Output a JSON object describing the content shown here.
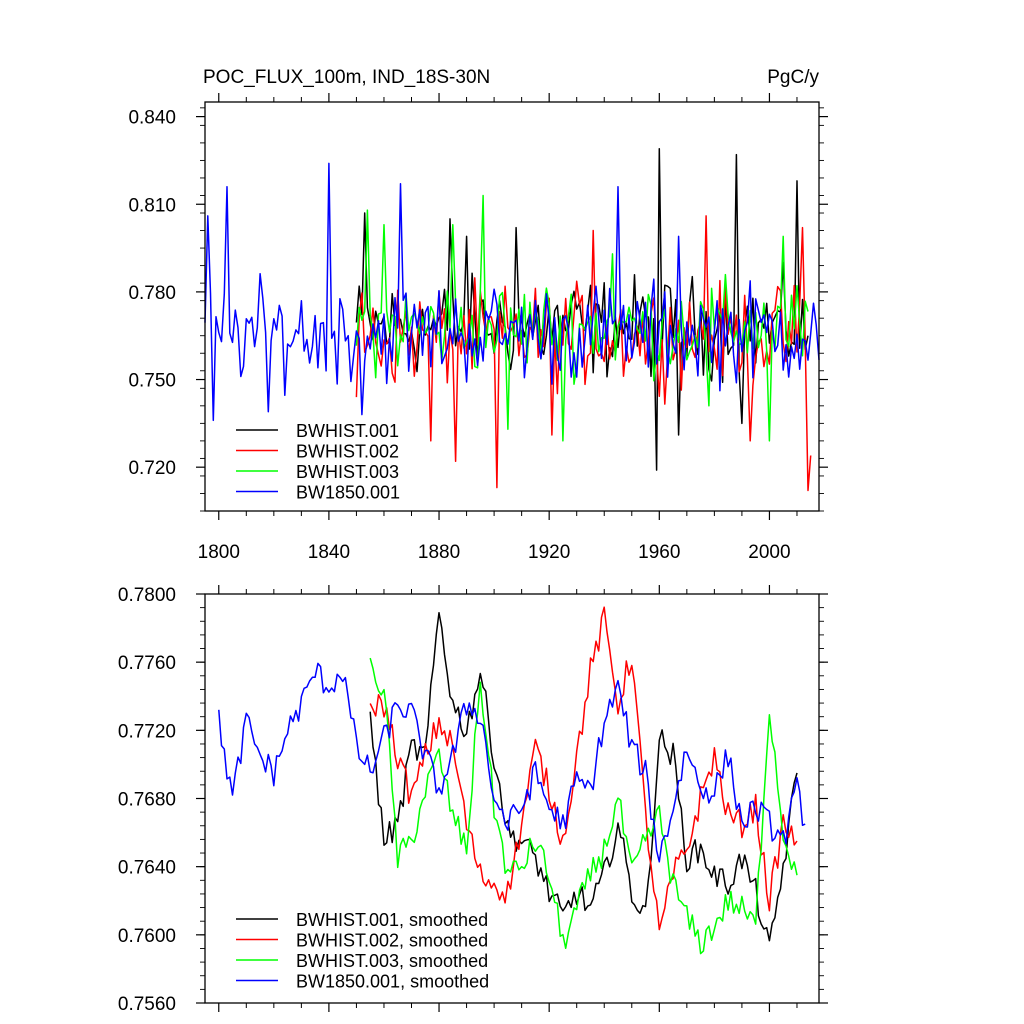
{
  "chart_data": [
    {
      "type": "line",
      "title_left": "POC_FLUX_100m, IND_18S-30N",
      "title_right": "PgC/y",
      "xlim": [
        1795,
        2018
      ],
      "ylim": [
        0.705,
        0.845
      ],
      "x_ticks": [
        1800,
        1840,
        1880,
        1920,
        1960,
        2000
      ],
      "y_ticks": [
        "0.720",
        "0.750",
        "0.780",
        "0.810",
        "0.840"
      ],
      "y_tick_values": [
        0.72,
        0.75,
        0.78,
        0.81,
        0.84
      ],
      "legend": [
        "BWHIST.001",
        "BWHIST.002",
        "BWHIST.003",
        "BW1850.001"
      ],
      "series": [
        {
          "name": "BWHIST.001",
          "color": "#000000",
          "start": 1850,
          "end": 2014,
          "base": 0.768,
          "amp": 0.013,
          "spikes": [
            [
              1853,
              0.807
            ],
            [
              1884,
              0.805
            ],
            [
              1890,
              0.799
            ],
            [
              1908,
              0.802
            ],
            [
              1960,
              0.829
            ],
            [
              1959,
              0.719
            ],
            [
              1988,
              0.827
            ],
            [
              2010,
              0.818
            ],
            [
              1967,
              0.731
            ],
            [
              1990,
              0.735
            ]
          ]
        },
        {
          "name": "BWHIST.002",
          "color": "#ff0000",
          "start": 1850,
          "end": 2015,
          "base": 0.765,
          "amp": 0.013,
          "spikes": [
            [
              1850,
              0.744
            ],
            [
              1877,
              0.729
            ],
            [
              1886,
              0.722
            ],
            [
              1901,
              0.713
            ],
            [
              1921,
              0.731
            ],
            [
              1936,
              0.801
            ],
            [
              1977,
              0.806
            ],
            [
              1993,
              0.729
            ],
            [
              2012,
              0.802
            ],
            [
              2014,
              0.712
            ],
            [
              2015,
              0.724
            ]
          ]
        },
        {
          "name": "BWHIST.003",
          "color": "#00ff00",
          "start": 1850,
          "end": 2014,
          "base": 0.768,
          "amp": 0.012,
          "spikes": [
            [
              1854,
              0.808
            ],
            [
              1860,
              0.803
            ],
            [
              1885,
              0.803
            ],
            [
              1896,
              0.813
            ],
            [
              1905,
              0.733
            ],
            [
              1925,
              0.729
            ],
            [
              1943,
              0.793
            ],
            [
              1978,
              0.741
            ],
            [
              2000,
              0.729
            ],
            [
              2005,
              0.799
            ]
          ]
        },
        {
          "name": "BW1850.001",
          "color": "#0000ff",
          "start": 1795,
          "end": 2018,
          "base": 0.766,
          "amp": 0.013,
          "spikes": [
            [
              1796,
              0.806
            ],
            [
              1798,
              0.736
            ],
            [
              1803,
              0.816
            ],
            [
              1818,
              0.739
            ],
            [
              1836,
              0.754
            ],
            [
              1840,
              0.824
            ],
            [
              1852,
              0.738
            ],
            [
              1866,
              0.817
            ],
            [
              1945,
              0.816
            ],
            [
              1967,
              0.799
            ]
          ]
        }
      ]
    },
    {
      "type": "line",
      "xlim": [
        1795,
        2018
      ],
      "ylim": [
        0.756,
        0.78
      ],
      "x_ticks": [
        1800,
        1840,
        1880,
        1920,
        1960,
        2000
      ],
      "y_ticks": [
        "0.7560",
        "0.7600",
        "0.7640",
        "0.7680",
        "0.7720",
        "0.7760",
        "0.7800"
      ],
      "y_tick_values": [
        0.756,
        0.76,
        0.764,
        0.768,
        0.772,
        0.776,
        0.78
      ],
      "legend": [
        "BWHIST.001, smoothed",
        "BWHIST.002, smoothed",
        "BWHIST.003, smoothed",
        "BW1850.001, smoothed"
      ],
      "series": [
        {
          "name": "BWHIST.001, smoothed",
          "color": "#000000",
          "x": [
            1855,
            1860,
            1865,
            1870,
            1875,
            1880,
            1885,
            1890,
            1895,
            1900,
            1905,
            1910,
            1915,
            1920,
            1925,
            1930,
            1935,
            1940,
            1945,
            1950,
            1955,
            1960,
            1965,
            1970,
            1975,
            1980,
            1985,
            1990,
            1995,
            2000,
            2005,
            2010
          ],
          "y": [
            0.7725,
            0.7655,
            0.7665,
            0.771,
            0.7705,
            0.779,
            0.7735,
            0.772,
            0.7755,
            0.7705,
            0.766,
            0.7655,
            0.7645,
            0.7625,
            0.761,
            0.7625,
            0.7615,
            0.7635,
            0.7665,
            0.7625,
            0.761,
            0.7715,
            0.7705,
            0.7645,
            0.765,
            0.7635,
            0.763,
            0.7645,
            0.7625,
            0.759,
            0.764,
            0.7695
          ]
        },
        {
          "name": "BWHIST.002, smoothed",
          "color": "#ff0000",
          "x": [
            1855,
            1860,
            1865,
            1870,
            1875,
            1880,
            1885,
            1890,
            1895,
            1900,
            1905,
            1910,
            1915,
            1920,
            1925,
            1930,
            1935,
            1940,
            1945,
            1950,
            1955,
            1960,
            1965,
            1970,
            1975,
            1980,
            1985,
            1990,
            1995,
            2000,
            2005,
            2010
          ],
          "y": [
            0.7735,
            0.7735,
            0.7705,
            0.768,
            0.7705,
            0.7725,
            0.771,
            0.7665,
            0.7635,
            0.763,
            0.7625,
            0.7665,
            0.771,
            0.7685,
            0.7655,
            0.7705,
            0.7755,
            0.7785,
            0.7735,
            0.7765,
            0.767,
            0.76,
            0.7635,
            0.765,
            0.768,
            0.7705,
            0.767,
            0.7665,
            0.7675,
            0.762,
            0.7665,
            0.7655
          ]
        },
        {
          "name": "BWHIST.003, smoothed",
          "color": "#00ff00",
          "x": [
            1855,
            1860,
            1865,
            1870,
            1875,
            1880,
            1885,
            1890,
            1895,
            1900,
            1905,
            1910,
            1915,
            1920,
            1925,
            1930,
            1935,
            1940,
            1945,
            1950,
            1955,
            1960,
            1965,
            1970,
            1975,
            1980,
            1985,
            1990,
            1995,
            2000,
            2005,
            2010
          ],
          "y": [
            0.7755,
            0.7745,
            0.7645,
            0.7655,
            0.7685,
            0.7705,
            0.767,
            0.765,
            0.775,
            0.7675,
            0.7635,
            0.764,
            0.7655,
            0.7635,
            0.7595,
            0.7615,
            0.7635,
            0.765,
            0.768,
            0.7635,
            0.7655,
            0.767,
            0.763,
            0.761,
            0.7595,
            0.7605,
            0.762,
            0.7615,
            0.7605,
            0.7735,
            0.766,
            0.7635
          ]
        },
        {
          "name": "BW1850.001, smoothed",
          "color": "#0000ff",
          "x": [
            1800,
            1805,
            1810,
            1815,
            1820,
            1825,
            1830,
            1835,
            1840,
            1845,
            1850,
            1855,
            1860,
            1865,
            1870,
            1875,
            1880,
            1885,
            1890,
            1895,
            1900,
            1905,
            1910,
            1915,
            1920,
            1925,
            1930,
            1935,
            1940,
            1945,
            1950,
            1955,
            1960,
            1965,
            1970,
            1975,
            1980,
            1985,
            1990,
            1995,
            2000,
            2005,
            2010,
            2013
          ],
          "y": [
            0.7725,
            0.768,
            0.7725,
            0.7705,
            0.7695,
            0.772,
            0.7735,
            0.7755,
            0.7745,
            0.7755,
            0.771,
            0.7695,
            0.7715,
            0.7735,
            0.773,
            0.7705,
            0.7685,
            0.7705,
            0.7735,
            0.773,
            0.768,
            0.7665,
            0.7675,
            0.7695,
            0.7675,
            0.7665,
            0.769,
            0.7685,
            0.7725,
            0.7745,
            0.771,
            0.7695,
            0.7645,
            0.7675,
            0.771,
            0.7685,
            0.7685,
            0.7705,
            0.7665,
            0.7675,
            0.7665,
            0.7655,
            0.7685,
            0.7665
          ]
        }
      ]
    }
  ]
}
